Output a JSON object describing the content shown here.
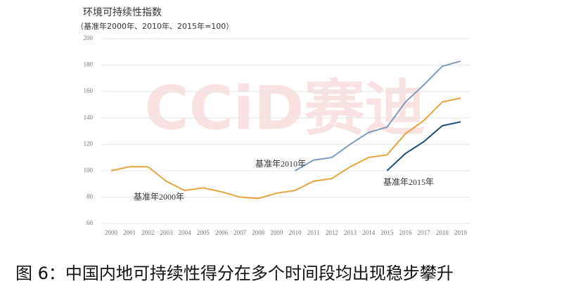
{
  "chart_data": {
    "type": "line",
    "title": "环境可持续性指数",
    "subtitle": "（基准年2000年、2010年、2015年=100）",
    "caption": "图 6：中国内地可持续性得分在多个时间段均出现稳步攀升",
    "watermark": "CCiD赛迪",
    "categories": [
      "2000",
      "2001",
      "2002",
      "2003",
      "2004",
      "2005",
      "2006",
      "2007",
      "2008",
      "2009",
      "2010",
      "2011",
      "2012",
      "2013",
      "2014",
      "2015",
      "2016",
      "2017",
      "2018",
      "2019"
    ],
    "series": [
      {
        "name": "基准年2000年",
        "color": "#e8a33d",
        "values": [
          100,
          103,
          103,
          92,
          85,
          87,
          84,
          80,
          79,
          83,
          85,
          92,
          94,
          103,
          110,
          112,
          128,
          138,
          152,
          155
        ]
      },
      {
        "name": "基准年2010年",
        "color": "#7f9cb9",
        "values": [
          null,
          null,
          null,
          null,
          null,
          null,
          null,
          null,
          null,
          null,
          100,
          108,
          110,
          120,
          129,
          133,
          152,
          165,
          179,
          183
        ]
      },
      {
        "name": "基准年2015年",
        "color": "#1f4e79",
        "values": [
          null,
          null,
          null,
          null,
          null,
          null,
          null,
          null,
          null,
          null,
          null,
          null,
          null,
          null,
          null,
          100,
          113,
          122,
          134,
          137
        ]
      }
    ],
    "ylim": [
      60,
      200
    ],
    "yticks": [
      60,
      80,
      100,
      120,
      140,
      160,
      180,
      200
    ],
    "grid": true
  }
}
